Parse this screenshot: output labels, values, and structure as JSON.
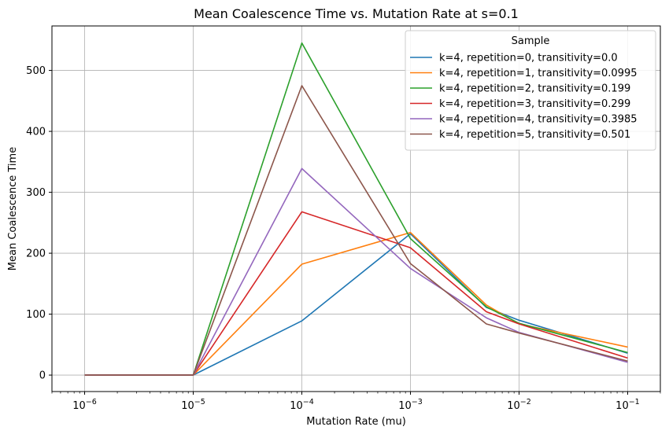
{
  "chart_data": {
    "type": "line",
    "title": "Mean Coalescence Time vs. Mutation Rate at s=0.1",
    "xlabel": "Mutation Rate (mu)",
    "ylabel": "Mean Coalescence Time",
    "xscale": "log",
    "xlim": [
      5e-07,
      0.2
    ],
    "ylim": [
      -27,
      573
    ],
    "grid": true,
    "x": [
      1e-06,
      1e-05,
      0.0001,
      0.001,
      0.005,
      0.01,
      0.1
    ],
    "x_ticks": [
      {
        "value": 1e-06,
        "base": "10",
        "exp": "−6"
      },
      {
        "value": 1e-05,
        "base": "10",
        "exp": "−5"
      },
      {
        "value": 0.0001,
        "base": "10",
        "exp": "−4"
      },
      {
        "value": 0.001,
        "base": "10",
        "exp": "−3"
      },
      {
        "value": 0.01,
        "base": "10",
        "exp": "−2"
      },
      {
        "value": 0.1,
        "base": "10",
        "exp": "−1"
      }
    ],
    "y_ticks": [
      0,
      100,
      200,
      300,
      400,
      500
    ],
    "legend": {
      "title": "Sample",
      "placement": "upper right"
    },
    "series": [
      {
        "name": "k=4, repetition=0, transitivity=0.0",
        "color": "#1f77b4",
        "values": [
          0,
          0,
          89,
          232,
          111,
          90,
          36
        ]
      },
      {
        "name": "k=4, repetition=1, transitivity=0.0995",
        "color": "#ff7f0e",
        "values": [
          0,
          0,
          182,
          234,
          115,
          84,
          46
        ]
      },
      {
        "name": "k=4, repetition=2, transitivity=0.199",
        "color": "#2ca02c",
        "values": [
          0,
          0,
          545,
          224,
          112,
          85,
          37
        ]
      },
      {
        "name": "k=4, repetition=3, transitivity=0.299",
        "color": "#d62728",
        "values": [
          0,
          0,
          268,
          209,
          104,
          84,
          28
        ]
      },
      {
        "name": "k=4, repetition=4, transitivity=0.3985",
        "color": "#9467bd",
        "values": [
          0,
          0,
          339,
          175,
          94,
          70,
          21
        ]
      },
      {
        "name": "k=4, repetition=5, transitivity=0.501",
        "color": "#8c564b",
        "values": [
          0,
          0,
          475,
          183,
          84,
          69,
          23
        ]
      }
    ]
  }
}
